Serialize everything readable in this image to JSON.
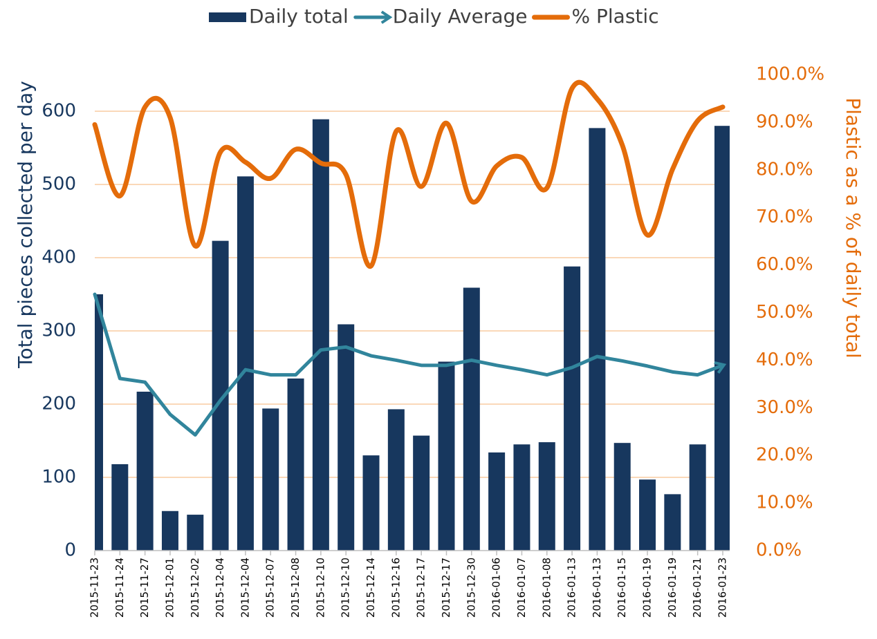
{
  "chart_data": {
    "type": "bar-line",
    "y_label": "Total pieces collected per day",
    "y2_label": "Plastic as a % of daily total",
    "categories": [
      "2015-11-23",
      "2015-11-24",
      "2015-11-27",
      "2015-12-01",
      "2015-12-02",
      "2015-12-04",
      "2015-12-04",
      "2015-12-07",
      "2015-12-08",
      "2015-12-10",
      "2015-12-10",
      "2015-12-14",
      "2015-12-16",
      "2015-12-17",
      "2015-12-17",
      "2015-12-30",
      "2016-01-06",
      "2016-01-07",
      "2016-01-08",
      "2016-01-13",
      "2016-01-13",
      "2016-01-15",
      "2016-01-19",
      "2016-01-19",
      "2016-01-21",
      "2016-01-23"
    ],
    "series": [
      {
        "name": "Daily total",
        "type": "bar",
        "color": "#17375e",
        "values": [
          350,
          118,
          217,
          54,
          49,
          423,
          511,
          194,
          235,
          589,
          309,
          130,
          193,
          157,
          258,
          359,
          134,
          145,
          148,
          388,
          577,
          147,
          97,
          77,
          145,
          580
        ]
      },
      {
        "name": "Daily Average",
        "type": "line",
        "color": "#31859c",
        "values": [
          350,
          235,
          230,
          186,
          158,
          205,
          247,
          240,
          240,
          274,
          278,
          266,
          260,
          253,
          253,
          260,
          253,
          247,
          240,
          250,
          265,
          259,
          252,
          244,
          240,
          253
        ]
      },
      {
        "name": "% Plastic",
        "type": "line",
        "smooth": true,
        "axis": "y2",
        "color": "#e46c0a",
        "values": [
          89.5,
          74.5,
          93.2,
          91,
          64,
          83.7,
          81.6,
          78.2,
          84.3,
          81.4,
          79,
          59.8,
          88.1,
          76.5,
          89.8,
          73.4,
          80.8,
          82.6,
          76.2,
          97.1,
          94.9,
          85.2,
          66.3,
          80.1,
          90.3,
          93.2
        ]
      }
    ],
    "ylim": [
      0,
      650
    ],
    "yticks": [
      0,
      100,
      200,
      300,
      400,
      500,
      600
    ],
    "y2lim": [
      0,
      100
    ],
    "y2ticks": [
      {
        "value": 0,
        "label": "0.0%"
      },
      {
        "value": 10,
        "label": "10.0%"
      },
      {
        "value": 20,
        "label": "20.0%"
      },
      {
        "value": 30,
        "label": "30.0%"
      },
      {
        "value": 40,
        "label": "40.0%"
      },
      {
        "value": 50,
        "label": "50.0%"
      },
      {
        "value": 60,
        "label": "60.0%"
      },
      {
        "value": 70,
        "label": "70.0%"
      },
      {
        "value": 80,
        "label": "80.0%"
      },
      {
        "value": 90,
        "label": "90.0%"
      },
      {
        "value": 100,
        "label": "100.0%"
      }
    ],
    "grid": true,
    "legend": "top"
  }
}
